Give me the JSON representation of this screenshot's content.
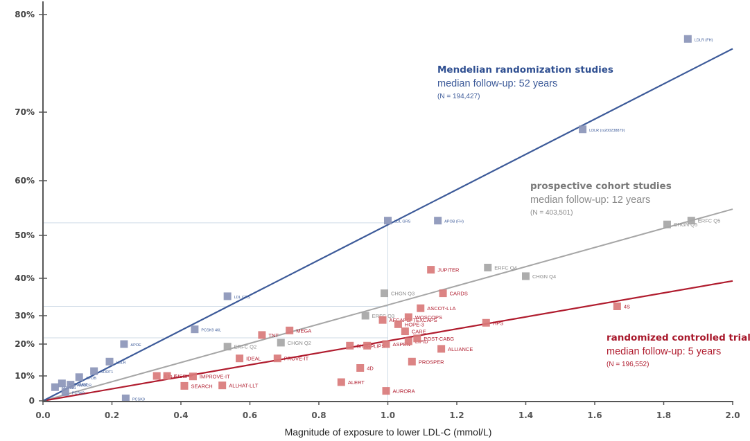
{
  "chart_data": {
    "type": "scatter",
    "title": "",
    "xlabel": "Magnitude of exposure to lower LDL-C (mmol/L)",
    "ylabel": "",
    "xlim": [
      0,
      2.0
    ],
    "ylim": [
      0,
      0.8
    ],
    "y_scale": "nonlinear (proportional risk reduction)",
    "grid": false,
    "x_ticks": [
      "0.0",
      "0.2",
      "0.4",
      "0.6",
      "0.8",
      "1.0",
      "1.2",
      "1.4",
      "1.6",
      "1.8",
      "2.0"
    ],
    "x_tick_values": [
      0,
      0.2,
      0.4,
      0.6,
      0.8,
      1.0,
      1.2,
      1.4,
      1.6,
      1.8,
      2.0
    ],
    "y_ticks": [
      "0",
      "10%",
      "20%",
      "30%",
      "40%",
      "50%",
      "60%",
      "70%",
      "80%"
    ],
    "y_tick_values": [
      0,
      0.1,
      0.2,
      0.3,
      0.4,
      0.5,
      0.6,
      0.7,
      0.8
    ],
    "reference_lines": [
      {
        "y": 0.523,
        "x_end": 1.0
      },
      {
        "y": 0.325,
        "x_end": 1.0
      },
      {
        "y": 0.222,
        "x_end": 1.0
      }
    ],
    "series": [
      {
        "name": "Mendelian randomization studies",
        "color": "#3c5a99",
        "marker_color": "#8b95b9",
        "fit_line": {
          "x": [
            0,
            2.0
          ],
          "y": [
            0,
            0.765
          ]
        },
        "annotation": {
          "title": "Mendelian randomization studies",
          "subtitle": "median follow-up: 52 years",
          "n": "(N = 194,427)"
        },
        "points": [
          {
            "label": "NPC1L1",
            "x": 0.035,
            "y": 0.055
          },
          {
            "label": "ABCG5/G8",
            "x": 0.055,
            "y": 0.07
          },
          {
            "label": "HMGCR",
            "x": 0.08,
            "y": 0.065
          },
          {
            "label": "PCSK9",
            "x": 0.065,
            "y": 0.035
          },
          {
            "label": "APOB",
            "x": 0.105,
            "y": 0.095
          },
          {
            "label": "SORT1",
            "x": 0.148,
            "y": 0.115
          },
          {
            "label": "LDLR",
            "x": 0.193,
            "y": 0.145
          },
          {
            "label": "APOE",
            "x": 0.235,
            "y": 0.2
          },
          {
            "label": "PCSK9",
            "x": 0.24,
            "y": 0.01
          },
          {
            "label": "PCSK9 46L",
            "x": 0.44,
            "y": 0.252
          },
          {
            "label": "LDL GRS",
            "x": 0.535,
            "y": 0.352
          },
          {
            "label": "LDL GRS",
            "x": 1.0,
            "y": 0.527
          },
          {
            "label": "APOB (FH)",
            "x": 1.145,
            "y": 0.527
          },
          {
            "label": "LDLR (rs200238879)",
            "x": 1.565,
            "y": 0.675
          },
          {
            "label": "LDLR (FH)",
            "x": 1.87,
            "y": 0.775
          }
        ]
      },
      {
        "name": "prospective cohort studies",
        "color": "#a6a6a6",
        "marker_color": "#a6a6a6",
        "fit_line": {
          "x": [
            0,
            2.0
          ],
          "y": [
            0,
            0.548
          ]
        },
        "annotation": {
          "title": "prospective cohort studies",
          "subtitle": "median follow-up: 12 years",
          "n": "(N = 403,501)"
        },
        "points": [
          {
            "label": "ERFC Q2",
            "x": 0.535,
            "y": 0.192
          },
          {
            "label": "CHGN Q2",
            "x": 0.69,
            "y": 0.205
          },
          {
            "label": "ERFC Q3",
            "x": 0.935,
            "y": 0.3
          },
          {
            "label": "CHGN Q3",
            "x": 0.99,
            "y": 0.36
          },
          {
            "label": "ERFC Q4",
            "x": 1.29,
            "y": 0.425
          },
          {
            "label": "CHGN Q4",
            "x": 1.4,
            "y": 0.405
          },
          {
            "label": "CHGN Q5",
            "x": 1.81,
            "y": 0.52
          },
          {
            "label": "ERFC Q5",
            "x": 1.88,
            "y": 0.527
          }
        ]
      },
      {
        "name": "randomized controlled trials",
        "color": "#b01c2e",
        "marker_color": "#d9797a",
        "fit_line": {
          "x": [
            0,
            2.0
          ],
          "y": [
            0,
            0.393
          ]
        },
        "annotation": {
          "title": "randomized controlled trials",
          "subtitle": "median follow-up: 5 years",
          "n": "(N = 196,552)"
        },
        "points": [
          {
            "label": "A to Z",
            "x": 0.33,
            "y": 0.1
          },
          {
            "label": "GISSI-P",
            "x": 0.36,
            "y": 0.1
          },
          {
            "label": "SEARCH",
            "x": 0.41,
            "y": 0.06
          },
          {
            "label": "IMPROVE-IT",
            "x": 0.435,
            "y": 0.098
          },
          {
            "label": "ALLHAT-LLT",
            "x": 0.52,
            "y": 0.062
          },
          {
            "label": "IDEAL",
            "x": 0.57,
            "y": 0.155
          },
          {
            "label": "TNT",
            "x": 0.635,
            "y": 0.232
          },
          {
            "label": "PROVE-IT",
            "x": 0.68,
            "y": 0.155
          },
          {
            "label": "MEGA",
            "x": 0.715,
            "y": 0.248
          },
          {
            "label": "ALERT",
            "x": 0.865,
            "y": 0.075
          },
          {
            "label": "SHARP",
            "x": 0.89,
            "y": 0.195
          },
          {
            "label": "4D",
            "x": 0.92,
            "y": 0.125
          },
          {
            "label": "LIPS",
            "x": 0.94,
            "y": 0.195
          },
          {
            "label": "AFCAPS/ TEXCAPS",
            "x": 0.985,
            "y": 0.285
          },
          {
            "label": "ASPEN",
            "x": 0.995,
            "y": 0.2
          },
          {
            "label": "AURORA",
            "x": 0.995,
            "y": 0.04
          },
          {
            "label": "HOPE-3",
            "x": 1.03,
            "y": 0.27
          },
          {
            "label": "CARE",
            "x": 1.05,
            "y": 0.245
          },
          {
            "label": "LIPID",
            "x": 1.06,
            "y": 0.21
          },
          {
            "label": "WOSCOPS",
            "x": 1.06,
            "y": 0.295
          },
          {
            "label": "PROSPER",
            "x": 1.07,
            "y": 0.145
          },
          {
            "label": "POST-CABG",
            "x": 1.085,
            "y": 0.22
          },
          {
            "label": "ASCOT-LLA",
            "x": 1.095,
            "y": 0.32
          },
          {
            "label": "JUPITER",
            "x": 1.125,
            "y": 0.42
          },
          {
            "label": "ALLIANCE",
            "x": 1.155,
            "y": 0.185
          },
          {
            "label": "CARDS",
            "x": 1.16,
            "y": 0.36
          },
          {
            "label": "HPS",
            "x": 1.285,
            "y": 0.275
          },
          {
            "label": "4S",
            "x": 1.665,
            "y": 0.325
          }
        ]
      }
    ]
  }
}
